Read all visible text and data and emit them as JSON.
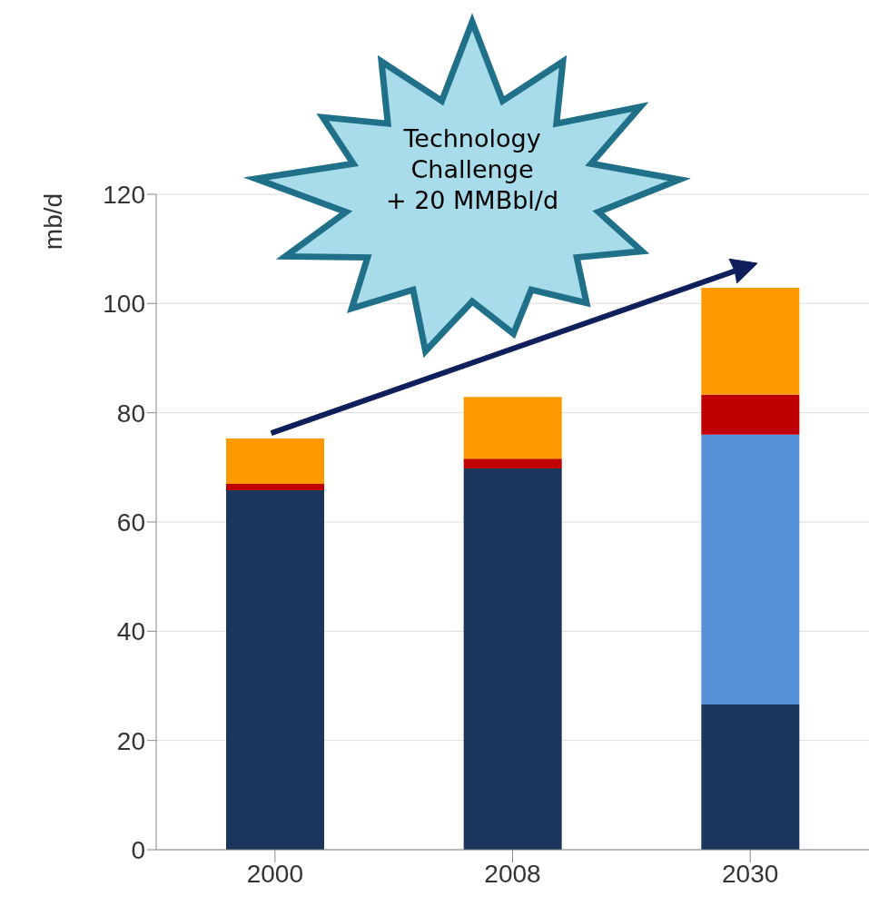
{
  "chart_data": {
    "type": "bar",
    "stacked": true,
    "ylabel": "mb/d",
    "categories": [
      "2000",
      "2008",
      "2030"
    ],
    "series": [
      {
        "color": "#1a365d",
        "values": [
          65.8,
          69.8,
          26.6
        ]
      },
      {
        "color": "#5690d6",
        "values": [
          0,
          0,
          49.4
        ]
      },
      {
        "color": "#c00000",
        "values": [
          1.2,
          1.8,
          7.3
        ]
      },
      {
        "color": "#ff9900",
        "values": [
          8.3,
          11.3,
          19.6
        ]
      }
    ],
    "ylim": [
      0,
      120
    ],
    "yticks": [
      0,
      20,
      40,
      60,
      80,
      100,
      120
    ],
    "grid": "y",
    "annotations": [
      "Technology\nChallenge\n+ 20 MMBbl/d"
    ]
  }
}
